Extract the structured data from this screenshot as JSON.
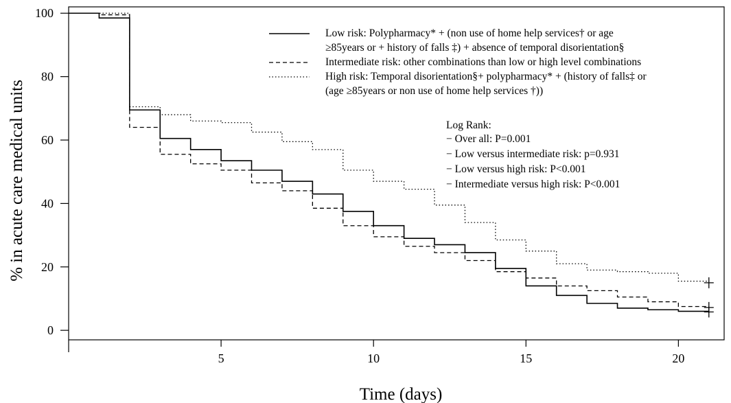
{
  "chart_data": {
    "type": "line",
    "subtype": "step",
    "xlabel": "Time (days)",
    "ylabel": "% in acute care medical units",
    "xlim": [
      0,
      21.5
    ],
    "ylim": [
      -3,
      102
    ],
    "x_ticks": [
      5,
      10,
      15,
      20
    ],
    "y_ticks": [
      0,
      20,
      40,
      60,
      80,
      100
    ],
    "grid": false,
    "legend_position": "top-right",
    "series": [
      {
        "name": "Low risk",
        "line_style": "solid",
        "legend_lines": [
          "Low risk: Polypharmacy* +  (non use of home help services† or age",
          "≥85years or  +  history of falls ‡) + absence of temporal disorientation§"
        ],
        "steps": [
          [
            0,
            100
          ],
          [
            1,
            98.5
          ],
          [
            2,
            69.5
          ],
          [
            3,
            60.5
          ],
          [
            4,
            57
          ],
          [
            5,
            53.5
          ],
          [
            6,
            50.5
          ],
          [
            7,
            47
          ],
          [
            8,
            43
          ],
          [
            9,
            37.5
          ],
          [
            10,
            33
          ],
          [
            11,
            29
          ],
          [
            12,
            27
          ],
          [
            13,
            24.5
          ],
          [
            14,
            19.5
          ],
          [
            15,
            14
          ],
          [
            16,
            11
          ],
          [
            17,
            8.5
          ],
          [
            18,
            7
          ],
          [
            19,
            6.5
          ],
          [
            20,
            6
          ]
        ],
        "x_end": 21,
        "censor": [
          21,
          5.8
        ]
      },
      {
        "name": "Intermediate risk",
        "line_style": "dashed",
        "legend_lines": [
          "Intermediate risk: other combinations than low or high level combinations"
        ],
        "steps": [
          [
            0,
            100
          ],
          [
            1,
            99.5
          ],
          [
            2,
            64
          ],
          [
            3,
            55.5
          ],
          [
            4,
            52.5
          ],
          [
            5,
            50.5
          ],
          [
            6,
            46.5
          ],
          [
            7,
            44
          ],
          [
            8,
            38.5
          ],
          [
            9,
            33
          ],
          [
            10,
            29.5
          ],
          [
            11,
            26.5
          ],
          [
            12,
            24.5
          ],
          [
            13,
            22
          ],
          [
            14,
            18.5
          ],
          [
            15,
            16.5
          ],
          [
            16,
            14
          ],
          [
            17,
            12.5
          ],
          [
            18,
            10.5
          ],
          [
            19,
            9
          ],
          [
            20,
            7.5
          ]
        ],
        "x_end": 21,
        "censor": [
          21,
          7.2
        ]
      },
      {
        "name": "High risk",
        "line_style": "dotted",
        "legend_lines": [
          "High risk: Temporal disorientation§+ polypharmacy* +  (history of falls‡ or",
          "(age ≥85years or  non use of home help services †))"
        ],
        "steps": [
          [
            0,
            100
          ],
          [
            1,
            100
          ],
          [
            2,
            70.5
          ],
          [
            3,
            68
          ],
          [
            4,
            66
          ],
          [
            5,
            65.5
          ],
          [
            6,
            62.5
          ],
          [
            7,
            59.5
          ],
          [
            8,
            57
          ],
          [
            9,
            50.5
          ],
          [
            10,
            47
          ],
          [
            11,
            44.5
          ],
          [
            12,
            39.5
          ],
          [
            13,
            34
          ],
          [
            14,
            28.5
          ],
          [
            15,
            25
          ],
          [
            16,
            21
          ],
          [
            17,
            19
          ],
          [
            18,
            18.5
          ],
          [
            19,
            18
          ],
          [
            20,
            15.5
          ]
        ],
        "x_end": 21,
        "censor": [
          21,
          15
        ]
      }
    ],
    "annotations": {
      "title": "Log Rank:",
      "lines": [
        "− Over all: P=0.001",
        "− Low versus intermediate risk:  p=0.931",
        "− Low versus high risk: P<0.001",
        "− Intermediate versus high risk: P<0.001"
      ]
    }
  }
}
